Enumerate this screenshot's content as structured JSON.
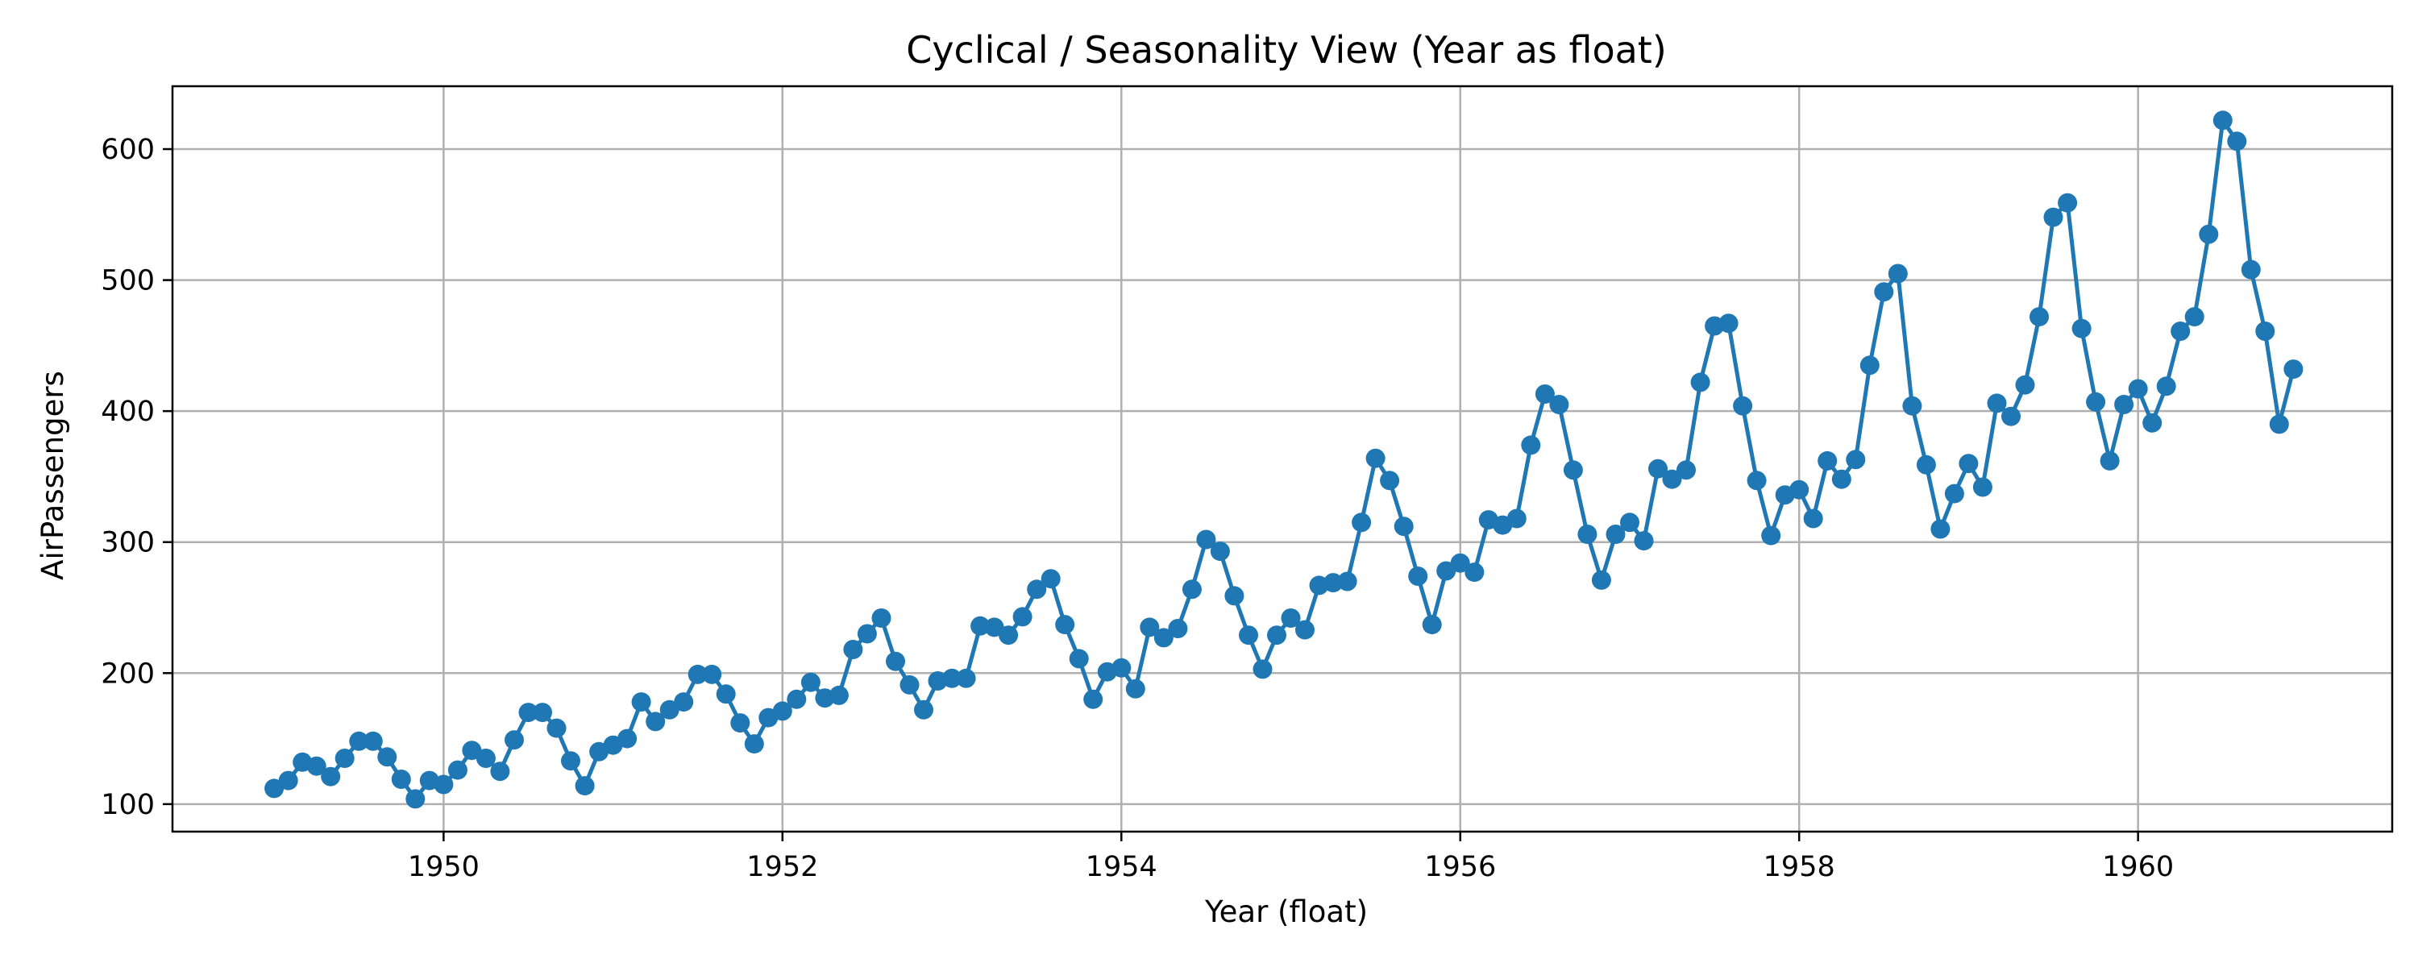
{
  "chart_data": {
    "type": "line",
    "title": "Cyclical / Seasonality View (Year as float)",
    "xlabel": "Year (float)",
    "ylabel": "AirPassengers",
    "xlim": [
      1948.4,
      1961.5
    ],
    "ylim": [
      79,
      648
    ],
    "xticks": [
      1950,
      1952,
      1954,
      1956,
      1958,
      1960
    ],
    "yticks": [
      100,
      200,
      300,
      400,
      500,
      600
    ],
    "grid": true,
    "marker": "circle",
    "colors": {
      "series": "#1f77b4"
    },
    "series": [
      {
        "x_start": 1949.0,
        "x_step": 0.0833333333,
        "values": [
          112,
          118,
          132,
          129,
          121,
          135,
          148,
          148,
          136,
          119,
          104,
          118,
          115,
          126,
          141,
          135,
          125,
          149,
          170,
          170,
          158,
          133,
          114,
          140,
          145,
          150,
          178,
          163,
          172,
          178,
          199,
          199,
          184,
          162,
          146,
          166,
          171,
          180,
          193,
          181,
          183,
          218,
          230,
          242,
          209,
          191,
          172,
          194,
          196,
          196,
          236,
          235,
          229,
          243,
          264,
          272,
          237,
          211,
          180,
          201,
          204,
          188,
          235,
          227,
          234,
          264,
          302,
          293,
          259,
          229,
          203,
          229,
          242,
          233,
          267,
          269,
          270,
          315,
          364,
          347,
          312,
          274,
          237,
          278,
          284,
          277,
          317,
          313,
          318,
          374,
          413,
          405,
          355,
          306,
          271,
          306,
          315,
          301,
          356,
          348,
          355,
          422,
          465,
          467,
          404,
          347,
          305,
          336,
          340,
          318,
          362,
          348,
          363,
          435,
          491,
          505,
          404,
          359,
          310,
          337,
          360,
          342,
          406,
          396,
          420,
          472,
          548,
          559,
          463,
          407,
          362,
          405,
          417,
          391,
          419,
          461,
          472,
          535,
          622,
          606,
          508,
          461,
          390,
          432
        ]
      }
    ]
  }
}
